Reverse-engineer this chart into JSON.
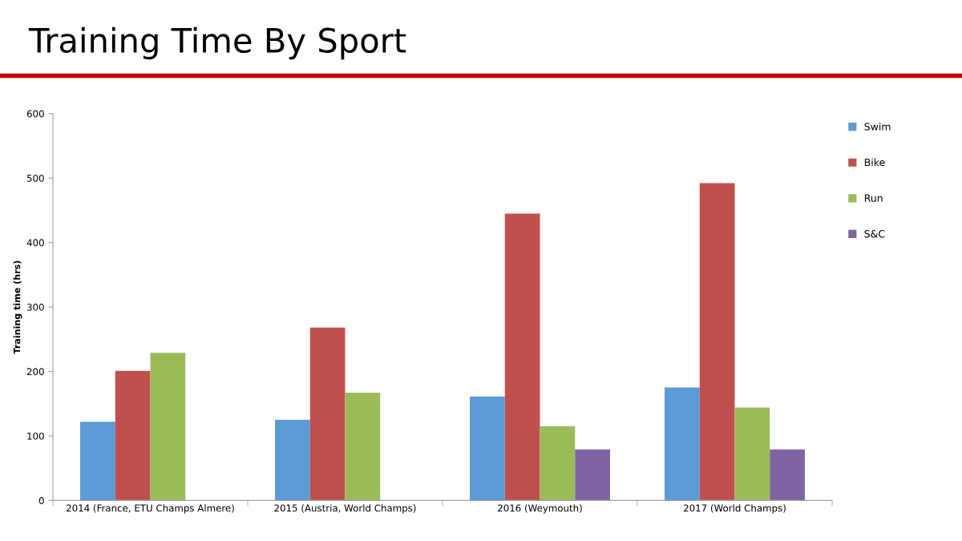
{
  "chart_data": {
    "type": "bar",
    "title": "Training Time By Sport",
    "ylabel": "Training time (hrs)",
    "categories": [
      "2014 (France, ETU Champs Almere)",
      "2015 (Austria, World Champs)",
      "2016 (Weymouth)",
      "2017 (World Champs)"
    ],
    "series": [
      {
        "name": "Swim",
        "color": "#5b9bd5",
        "values": [
          122,
          125,
          161,
          175
        ]
      },
      {
        "name": "Bike",
        "color": "#c0504d",
        "values": [
          201,
          268,
          445,
          492
        ]
      },
      {
        "name": "Run",
        "color": "#9bbb59",
        "values": [
          229,
          167,
          115,
          144
        ]
      },
      {
        "name": "S&C",
        "color": "#8064a2",
        "values": [
          null,
          null,
          79,
          79
        ]
      }
    ],
    "ylim": [
      0,
      600
    ],
    "yticks": [
      0,
      100,
      200,
      300,
      400,
      500,
      600
    ],
    "grid": false,
    "legend": "right"
  }
}
